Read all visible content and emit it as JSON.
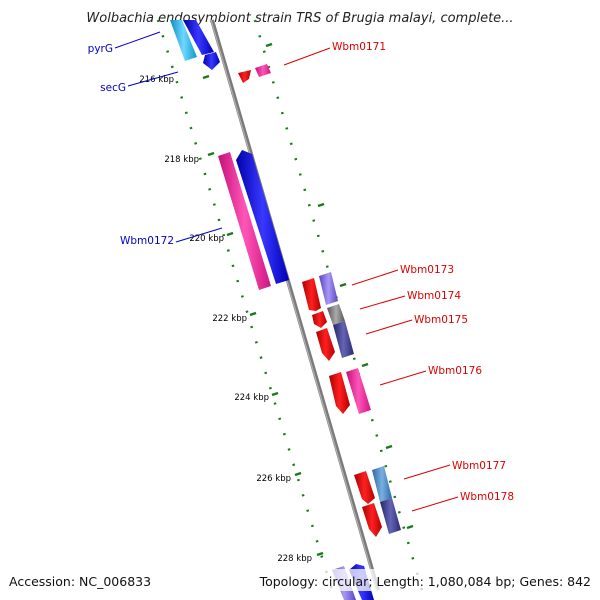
{
  "title": "Wolbachia endosymbiont strain TRS of Brugia malayi, complete...",
  "footer": {
    "accession": "Accession: NC_006833",
    "summary": "Topology: circular; Length: 1,080,084 bp; Genes: 842"
  },
  "ticks": [
    "216 kbp",
    "218 kbp",
    "220 kbp",
    "222 kbp",
    "224 kbp",
    "226 kbp",
    "228 kbp"
  ],
  "genes": [
    {
      "name": "pyrG",
      "color": "#0000cc"
    },
    {
      "name": "secG",
      "color": "#0000cc"
    },
    {
      "name": "Wbm0171",
      "color": "#dd0000"
    },
    {
      "name": "Wbm0172",
      "color": "#0000cc"
    },
    {
      "name": "Wbm0173",
      "color": "#dd0000"
    },
    {
      "name": "Wbm0174",
      "color": "#dd0000"
    },
    {
      "name": "Wbm0175",
      "color": "#dd0000"
    },
    {
      "name": "Wbm0176",
      "color": "#dd0000"
    },
    {
      "name": "Wbm0177",
      "color": "#dd0000"
    },
    {
      "name": "Wbm0178",
      "color": "#dd0000"
    }
  ],
  "colors": {
    "backbone": "#8a8a8a",
    "tick_dash": "#1a7a1a",
    "gene_red": "#ee1111",
    "gene_pink": "#ff2a9a",
    "gene_blue": "#0a0af0",
    "gene_cyan": "#19b8ec",
    "gene_lavender": "#7a62e0",
    "gene_slate": "#3a3a8a"
  }
}
